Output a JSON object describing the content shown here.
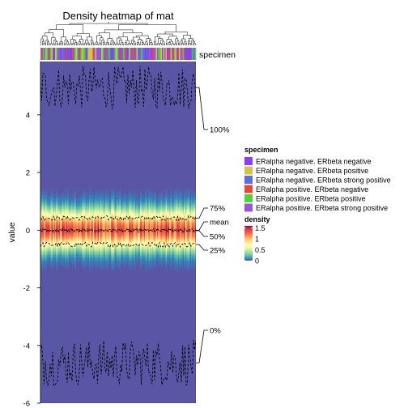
{
  "chart_data": {
    "type": "heatmap",
    "title": "Density heatmap of mat",
    "ylabel": "value",
    "ylim": [
      -6,
      5.85
    ],
    "y_ticks": [
      -6,
      -4,
      -2,
      0,
      2,
      4
    ],
    "y_tick_labels": [
      "-6",
      "-4",
      "-2",
      "0",
      "2",
      "4"
    ],
    "n_columns": 128,
    "annotation_label": "specimen",
    "quantile_labels": [
      "100%",
      "75%",
      "mean",
      "50%",
      "25%",
      "0%"
    ],
    "quantiles": {
      "max_mean": 4.95,
      "max_spread": 0.75,
      "q75_mean": 0.42,
      "q75_spread": 0.08,
      "mean_mean": 0.0,
      "mean_spread": 0.05,
      "median_mean": -0.02,
      "median_spread": 0.06,
      "q25_mean": -0.5,
      "q25_spread": 0.09,
      "min_mean": -4.6,
      "min_spread": 0.8
    },
    "legend_specimen": {
      "title": "specimen",
      "entries": [
        {
          "label": "ERalpha negative. ERbeta negative",
          "color": "#8a3ff0"
        },
        {
          "label": "ERalpha negative. ERbeta positive",
          "color": "#d4c34a"
        },
        {
          "label": "ERalpha negative. ERbeta strong positive",
          "color": "#5b6fd6"
        },
        {
          "label": "ERalpha positive. ERbeta negative",
          "color": "#e8473c"
        },
        {
          "label": "ERalpha positive. ERbeta positive",
          "color": "#52d13a"
        },
        {
          "label": "ERalpha positive. ERbeta strong positive",
          "color": "#9a55d8"
        }
      ]
    },
    "legend_density": {
      "title": "density",
      "ticks": [
        1.5,
        1,
        0.5,
        0
      ],
      "tick_labels": [
        "1.5",
        "1",
        "0.5",
        "0"
      ],
      "range": [
        0,
        1.6
      ]
    },
    "colors": {
      "palette": [
        "#5e4fa2",
        "#3288bd",
        "#66c2a5",
        "#abdda4",
        "#e6f598",
        "#ffffbf",
        "#fee08b",
        "#fdae61",
        "#f46d43",
        "#d53e4f",
        "#9e0142"
      ]
    }
  }
}
